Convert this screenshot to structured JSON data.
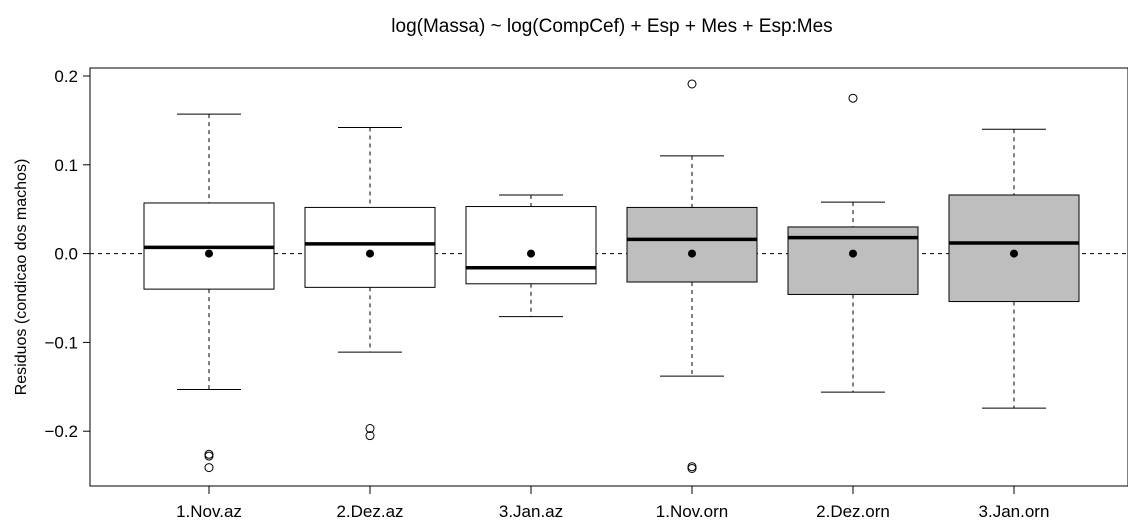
{
  "chart_data": {
    "type": "boxplot",
    "title": "log(Massa) ~ log(CompCef) + Esp + Mes + Esp:Mes",
    "xlabel": "",
    "ylabel": "Residuos (condicao dos machos)",
    "ylim": [
      -0.26,
      0.21
    ],
    "yticks": [
      -0.2,
      -0.1,
      0.0,
      0.1,
      0.2
    ],
    "ytick_labels": [
      "−0.2",
      "−0.1",
      "0.0",
      "0.1",
      "0.2"
    ],
    "reference_line": 0.0,
    "categories": [
      "1.Nov.az",
      "2.Dez.az",
      "3.Jan.az",
      "1.Nov.orn",
      "2.Dez.orn",
      "3.Jan.orn"
    ],
    "fill_colors": [
      "#ffffff",
      "#ffffff",
      "#ffffff",
      "#bebebe",
      "#bebebe",
      "#bebebe"
    ],
    "boxes": [
      {
        "whisker_low": -0.153,
        "q1": -0.04,
        "median": 0.007,
        "q3": 0.057,
        "whisker_high": 0.157,
        "mean": 0.0,
        "outliers": [
          -0.226,
          -0.228,
          -0.241
        ]
      },
      {
        "whisker_low": -0.111,
        "q1": -0.038,
        "median": 0.011,
        "q3": 0.052,
        "whisker_high": 0.142,
        "mean": 0.0,
        "outliers": [
          -0.197,
          -0.205
        ]
      },
      {
        "whisker_low": -0.071,
        "q1": -0.034,
        "median": -0.016,
        "q3": 0.053,
        "whisker_high": 0.066,
        "mean": 0.0,
        "outliers": []
      },
      {
        "whisker_low": -0.138,
        "q1": -0.032,
        "median": 0.016,
        "q3": 0.052,
        "whisker_high": 0.11,
        "mean": 0.0,
        "outliers": [
          0.191,
          -0.24,
          -0.242
        ]
      },
      {
        "whisker_low": -0.156,
        "q1": -0.046,
        "median": 0.018,
        "q3": 0.03,
        "whisker_high": 0.058,
        "mean": 0.0,
        "outliers": [
          0.175
        ]
      },
      {
        "whisker_low": -0.174,
        "q1": -0.054,
        "median": 0.012,
        "q3": 0.066,
        "whisker_high": 0.14,
        "mean": 0.0,
        "outliers": []
      }
    ]
  }
}
